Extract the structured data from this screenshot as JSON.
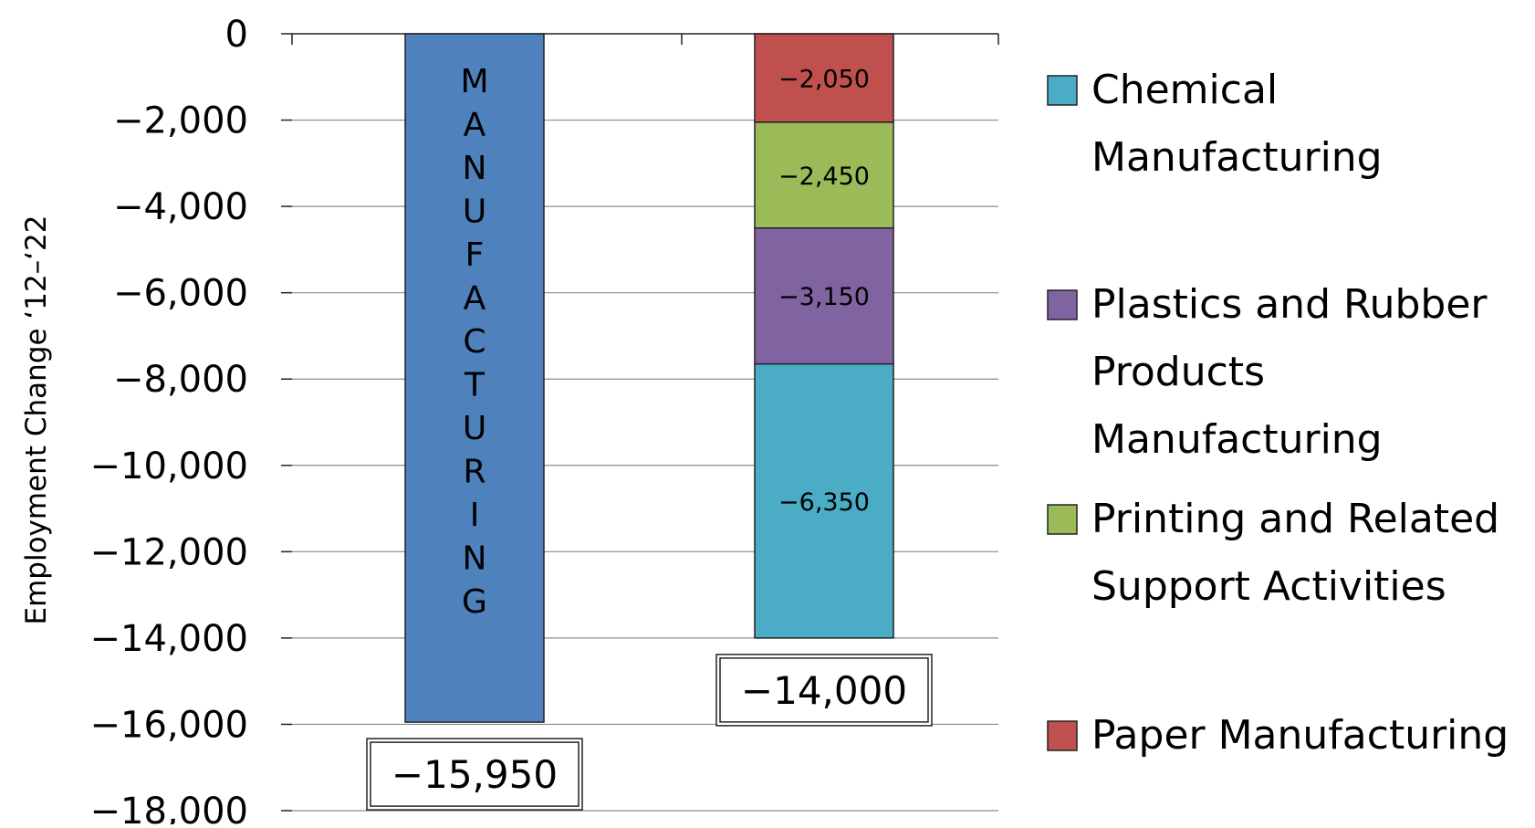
{
  "chart_data": {
    "type": "bar",
    "stacked": true,
    "ylabel": "Employment Change ‘12–‘22",
    "ylim": [
      -18000,
      0
    ],
    "yticks": [
      0,
      -2000,
      -4000,
      -6000,
      -8000,
      -10000,
      -12000,
      -14000,
      -16000,
      -18000
    ],
    "ytick_labels": [
      "0",
      "−2,000",
      "−4,000",
      "−6,000",
      "−8,000",
      "−10,000",
      "−12,000",
      "−14,000",
      "−16,000",
      "−18,000"
    ],
    "grid": true,
    "legend_position": "right",
    "bars": [
      {
        "inside_label": "MANUFACTURING",
        "total_label": "−15,950",
        "total": -15950,
        "segments": [
          {
            "value": -15950,
            "color": "#4F81BD",
            "label": ""
          }
        ]
      },
      {
        "inside_label": "",
        "total_label": "−14,000",
        "total": -14000,
        "segments": [
          {
            "series": "Paper Manufacturing",
            "value": -2050,
            "label": "−2,050",
            "color": "#C0504D"
          },
          {
            "series": "Printing and Related Support Activities",
            "value": -2450,
            "label": "−2,450",
            "color": "#9BBB59"
          },
          {
            "series": "Plastics and Rubber Products Manufacturing",
            "value": -3150,
            "label": "−3,150",
            "color": "#8064A2"
          },
          {
            "series": "Chemical Manufacturing",
            "value": -6350,
            "label": "−6,350",
            "color": "#4BACC6"
          }
        ]
      }
    ],
    "legend": [
      {
        "lines": [
          "Chemical",
          "Manufacturing"
        ],
        "color": "#4BACC6"
      },
      {
        "lines": [
          "Plastics and Rubber",
          "Products",
          "Manufacturing"
        ],
        "color": "#8064A2"
      },
      {
        "lines": [
          "Printing and Related",
          "Support Activities"
        ],
        "color": "#9BBB59"
      },
      {
        "lines": [
          "Paper Manufacturing"
        ],
        "color": "#C0504D"
      }
    ]
  }
}
